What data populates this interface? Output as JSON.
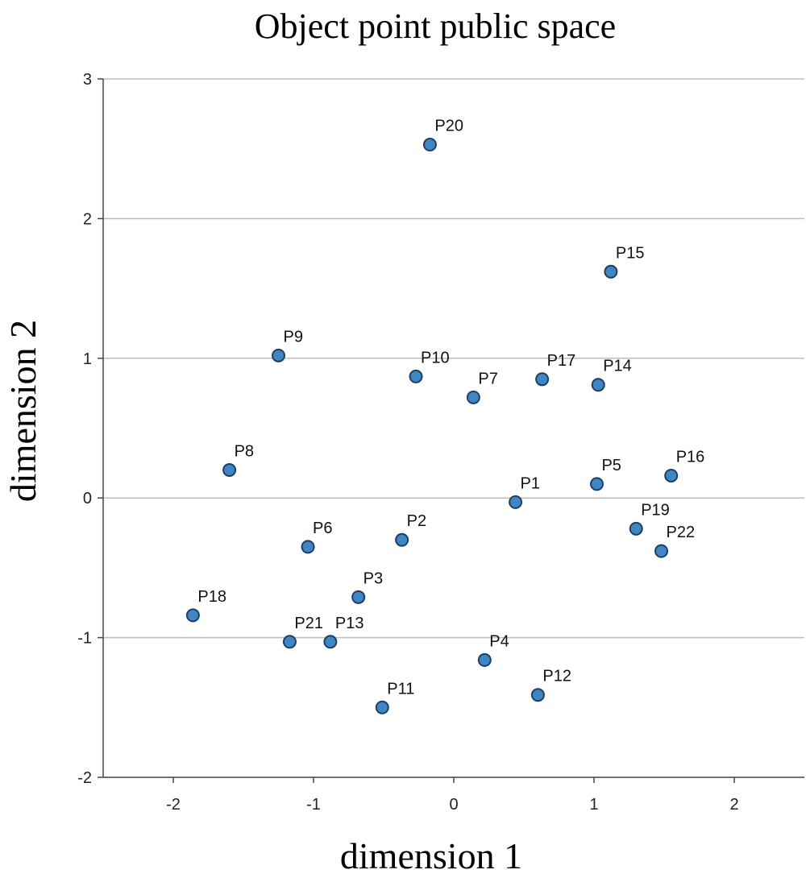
{
  "chart_data": {
    "type": "scatter",
    "title": "Object point public space",
    "xlabel": "dimension 1",
    "ylabel": "dimension 2",
    "xlim": [
      -2.5,
      2.5
    ],
    "ylim": [
      -2,
      3
    ],
    "xticks": [
      -2,
      -1,
      0,
      1,
      2
    ],
    "yticks": [
      -2,
      -1,
      0,
      1,
      2,
      3
    ],
    "grid": "horizontal",
    "marker_color": "#3f86c2",
    "marker_edge": "#1d3f66",
    "points": [
      {
        "label": "P1",
        "x": 0.44,
        "y": -0.03
      },
      {
        "label": "P2",
        "x": -0.37,
        "y": -0.3
      },
      {
        "label": "P3",
        "x": -0.68,
        "y": -0.71
      },
      {
        "label": "P4",
        "x": 0.22,
        "y": -1.16
      },
      {
        "label": "P5",
        "x": 1.02,
        "y": 0.1
      },
      {
        "label": "P6",
        "x": -1.04,
        "y": -0.35
      },
      {
        "label": "P7",
        "x": 0.14,
        "y": 0.72
      },
      {
        "label": "P8",
        "x": -1.6,
        "y": 0.2
      },
      {
        "label": "P9",
        "x": -1.25,
        "y": 1.02
      },
      {
        "label": "P10",
        "x": -0.27,
        "y": 0.87
      },
      {
        "label": "P11",
        "x": -0.51,
        "y": -1.5
      },
      {
        "label": "P12",
        "x": 0.6,
        "y": -1.41
      },
      {
        "label": "P13",
        "x": -0.88,
        "y": -1.03
      },
      {
        "label": "P14",
        "x": 1.03,
        "y": 0.81
      },
      {
        "label": "P15",
        "x": 1.12,
        "y": 1.62
      },
      {
        "label": "P16",
        "x": 1.55,
        "y": 0.16
      },
      {
        "label": "P17",
        "x": 0.63,
        "y": 0.85
      },
      {
        "label": "P18",
        "x": -1.86,
        "y": -0.84
      },
      {
        "label": "P19",
        "x": 1.3,
        "y": -0.22
      },
      {
        "label": "P20",
        "x": -0.17,
        "y": 2.53
      },
      {
        "label": "P21",
        "x": -1.17,
        "y": -1.03
      },
      {
        "label": "P22",
        "x": 1.48,
        "y": -0.38
      }
    ]
  }
}
